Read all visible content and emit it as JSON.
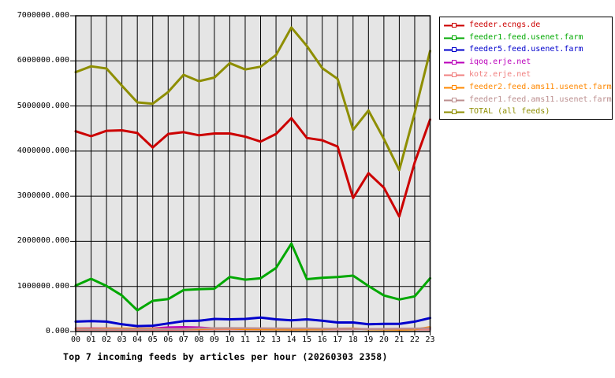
{
  "chart_data": {
    "type": "line",
    "title": "Top 7 incoming feeds by articles per hour (20260303 2358)",
    "xlabel": "",
    "ylabel": "",
    "ylim": [
      0,
      7000000
    ],
    "grid": true,
    "plot_bg": "#e5e5e5",
    "grid_color": "#000000",
    "legend_position": "outside-top-right",
    "x_labels": [
      "00",
      "01",
      "02",
      "03",
      "04",
      "05",
      "06",
      "07",
      "08",
      "09",
      "10",
      "11",
      "12",
      "13",
      "14",
      "15",
      "16",
      "17",
      "18",
      "19",
      "20",
      "21",
      "22",
      "23"
    ],
    "y_ticks": [
      {
        "value": 0,
        "label": "0.000"
      },
      {
        "value": 1000000,
        "label": "1000000.000"
      },
      {
        "value": 2000000,
        "label": "2000000.000"
      },
      {
        "value": 3000000,
        "label": "3000000.000"
      },
      {
        "value": 4000000,
        "label": "4000000.000"
      },
      {
        "value": 5000000,
        "label": "5000000.000"
      },
      {
        "value": 6000000,
        "label": "6000000.000"
      },
      {
        "value": 7000000,
        "label": "7000000.000"
      }
    ],
    "series": [
      {
        "name": "feeder.ecngs.de",
        "color": "#cc0000",
        "width": 3,
        "values": [
          4440000,
          4330000,
          4450000,
          4460000,
          4400000,
          4080000,
          4380000,
          4420000,
          4350000,
          4390000,
          4390000,
          4320000,
          4210000,
          4380000,
          4730000,
          4290000,
          4240000,
          4100000,
          2960000,
          3510000,
          3190000,
          2550000,
          3750000,
          4700000
        ]
      },
      {
        "name": "feeder1.feed.usenet.farm",
        "color": "#00a800",
        "width": 3,
        "values": [
          1020000,
          1170000,
          1010000,
          800000,
          470000,
          680000,
          720000,
          920000,
          940000,
          950000,
          1210000,
          1150000,
          1180000,
          1410000,
          1950000,
          1160000,
          1190000,
          1210000,
          1240000,
          1010000,
          800000,
          710000,
          780000,
          1180000
        ]
      },
      {
        "name": "feeder5.feed.usenet.farm",
        "color": "#0000cc",
        "width": 3,
        "values": [
          220000,
          230000,
          220000,
          160000,
          120000,
          130000,
          180000,
          230000,
          240000,
          280000,
          270000,
          280000,
          310000,
          270000,
          250000,
          270000,
          240000,
          200000,
          200000,
          160000,
          170000,
          170000,
          220000,
          300000
        ]
      },
      {
        "name": "iqoq.erje.net",
        "color": "#bb00bb",
        "width": 2.5,
        "values": [
          70000,
          70000,
          70000,
          65000,
          60000,
          70000,
          95000,
          100000,
          90000,
          70000,
          65000,
          62000,
          60000,
          62000,
          65000,
          63000,
          60000,
          58000,
          55000,
          55000,
          58000,
          55000,
          60000,
          65000
        ]
      },
      {
        "name": "kotz.erje.net",
        "color": "#f08080",
        "width": 2.5,
        "values": [
          40000,
          40000,
          38000,
          36000,
          35000,
          38000,
          40000,
          42000,
          45000,
          48000,
          50000,
          48000,
          46000,
          45000,
          44000,
          45000,
          46000,
          48000,
          52000,
          58000,
          55000,
          48000,
          45000,
          44000
        ]
      },
      {
        "name": "feeder2.feed.ams11.usenet.farm",
        "color": "#ff8800",
        "width": 2.5,
        "values": [
          62000,
          60000,
          66000,
          68000,
          64000,
          66000,
          58000,
          55000,
          52000,
          70000,
          72000,
          52000,
          50000,
          48000,
          46000,
          48000,
          50000,
          66000,
          68000,
          48000,
          45000,
          42000,
          48000,
          98000
        ]
      },
      {
        "name": "feeder1.feed.ams11.usenet.farm",
        "color": "#bc8f8f",
        "width": 2.5,
        "values": [
          50000,
          48000,
          50000,
          52000,
          50000,
          52000,
          55000,
          58000,
          70000,
          74000,
          76000,
          74000,
          72000,
          70000,
          68000,
          70000,
          66000,
          62000,
          60000,
          58000,
          60000,
          62000,
          66000,
          74000
        ]
      },
      {
        "name": "TOTAL (all feeds)",
        "color": "#8e8e00",
        "width": 3,
        "values": [
          5750000,
          5880000,
          5830000,
          5450000,
          5080000,
          5050000,
          5310000,
          5690000,
          5550000,
          5630000,
          5950000,
          5810000,
          5870000,
          6130000,
          6740000,
          6330000,
          5840000,
          5600000,
          4470000,
          4900000,
          4270000,
          3580000,
          4850000,
          6220000
        ]
      }
    ]
  }
}
